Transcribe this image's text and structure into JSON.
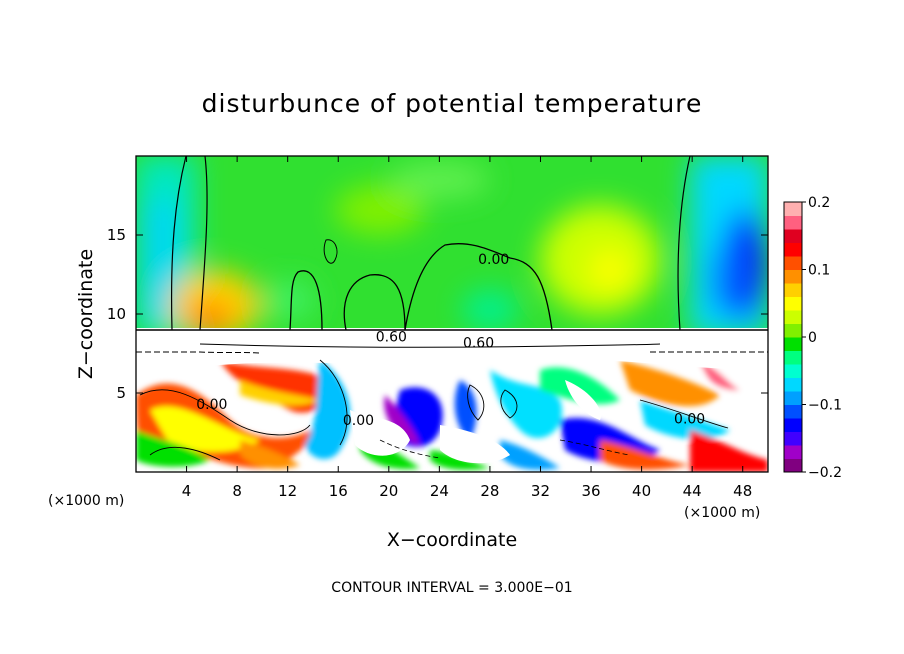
{
  "chart_data": {
    "type": "heatmap",
    "title": "disturbunce of potential temperature",
    "xlabel": "X−coordinate",
    "ylabel": "Z−coordinate",
    "x_unit_left": "(×1000 m)",
    "x_unit_right": "(×1000 m)",
    "xlim": [
      0,
      50
    ],
    "ylim": [
      0,
      20
    ],
    "x_ticks": [
      4,
      8,
      12,
      16,
      20,
      24,
      28,
      32,
      36,
      40,
      44,
      48
    ],
    "x_tick_labels": [
      "4",
      "8",
      "12",
      "16",
      "20",
      "24",
      "28",
      "32",
      "36",
      "40",
      "44",
      "48"
    ],
    "y_ticks": [
      5,
      10,
      15
    ],
    "y_tick_labels": [
      "5",
      "10",
      "15"
    ],
    "colorbar": {
      "range": [
        -0.2,
        0.2
      ],
      "ticks": [
        0.2,
        0.1,
        0,
        -0.1,
        -0.2
      ],
      "tick_labels": [
        "0.2",
        "0.1",
        "0",
        "−0.1",
        "−0.2"
      ],
      "colors": [
        "#800080",
        "#a000c8",
        "#4000ff",
        "#0000ff",
        "#0050ff",
        "#00a0ff",
        "#00d8ff",
        "#00ffd0",
        "#00ff80",
        "#00e000",
        "#80f000",
        "#ccff00",
        "#ffff00",
        "#ffd000",
        "#ff9000",
        "#ff5000",
        "#ff0000",
        "#e00020",
        "#ff6080",
        "#ffb0b0"
      ]
    },
    "contour_labels": [
      {
        "text": "0.00",
        "x": 28.3,
        "y": 13.3
      },
      {
        "text": "0.60",
        "x": 20.2,
        "y": 8.4
      },
      {
        "text": "0.60",
        "x": 27.1,
        "y": 8.0
      },
      {
        "text": "0.00",
        "x": 6.0,
        "y": 4.1
      },
      {
        "text": "0.00",
        "x": 43.8,
        "y": 3.2
      },
      {
        "text": "0.00",
        "x": 17.6,
        "y": 3.1
      }
    ],
    "inversion_layer_z": [
      8.2,
      9.0
    ],
    "contour_interval_text": "CONTOUR INTERVAL = 3.000E−01"
  }
}
